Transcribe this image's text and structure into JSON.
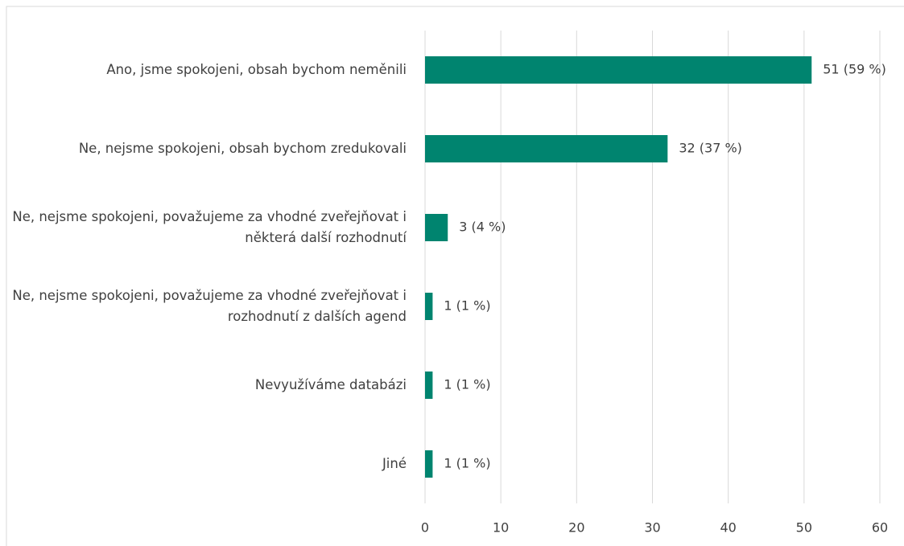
{
  "chart_data": {
    "type": "barh",
    "categories": [
      "Ano, jsme spokojeni, obsah bychom neměnili",
      "Ne, nejsme spokojeni, obsah bychom zredukovali",
      "Ne, nejsme spokojeni, považujeme za vhodné zveřejňovat i některá další rozhodnutí",
      "Ne, nejsme spokojeni, považujeme za vhodné zveřejňovat i rozhodnutí z dalších agend",
      "Nevyužíváme databázi",
      "Jiné"
    ],
    "values": [
      51,
      32,
      3,
      1,
      1,
      1
    ],
    "value_labels": [
      "51 (59 %)",
      "32 (37 %)",
      "3 (4 %)",
      "1 (1 %)",
      "1 (1 %)",
      "1 (1 %)"
    ],
    "color": "#00846f",
    "xlim": [
      0,
      60
    ],
    "xticks": [
      0,
      10,
      20,
      30,
      40,
      50,
      60
    ],
    "grid": true
  }
}
